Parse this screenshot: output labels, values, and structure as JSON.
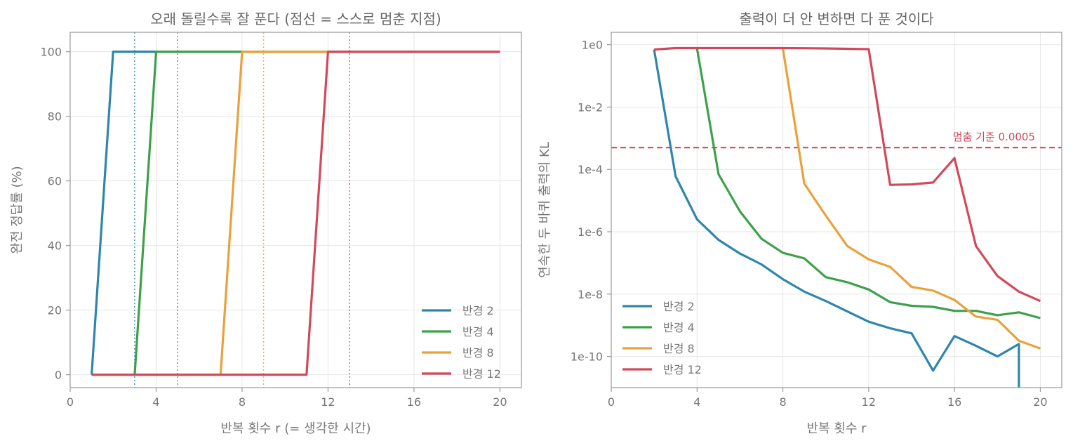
{
  "chart_data": [
    {
      "type": "line",
      "title": "오래 돌릴수록 잘 푼다 (점선 = 스스로 멈춘 지점)",
      "xlabel": "반복 횟수 r  (= 생각한 시간)",
      "ylabel": "완전 정답률 (%)",
      "xlim": [
        0,
        21
      ],
      "ylim": [
        -4,
        106
      ],
      "xticks": [
        0,
        4,
        8,
        12,
        16,
        20
      ],
      "yticks": [
        0,
        20,
        40,
        60,
        80,
        100
      ],
      "grid": true,
      "legend_position": "bottom-right",
      "series": [
        {
          "name": "반경 2",
          "color": "#2e86ab",
          "x": [
            1,
            2,
            3,
            4,
            5,
            6,
            7,
            8,
            9,
            10,
            11,
            12,
            13,
            14,
            15,
            16,
            17,
            18,
            19,
            20
          ],
          "y": [
            0,
            100,
            100,
            100,
            100,
            100,
            100,
            100,
            100,
            100,
            100,
            100,
            100,
            100,
            100,
            100,
            100,
            100,
            100,
            100
          ]
        },
        {
          "name": "반경 4",
          "color": "#3da14a",
          "x": [
            3,
            4,
            5,
            6,
            7,
            8,
            9,
            10,
            11,
            12,
            13,
            14,
            15,
            16,
            17,
            18,
            19,
            20
          ],
          "y": [
            0,
            100,
            100,
            100,
            100,
            100,
            100,
            100,
            100,
            100,
            100,
            100,
            100,
            100,
            100,
            100,
            100,
            100
          ]
        },
        {
          "name": "반경 8",
          "color": "#e9a23b",
          "x": [
            1,
            2,
            3,
            4,
            5,
            6,
            7,
            8,
            9,
            10,
            11,
            12,
            13,
            14,
            15,
            16,
            17,
            18,
            19,
            20
          ],
          "y": [
            0,
            0,
            0,
            0,
            0,
            0,
            0,
            100,
            100,
            100,
            100,
            100,
            100,
            100,
            100,
            100,
            100,
            100,
            100,
            100
          ]
        },
        {
          "name": "반경 12",
          "color": "#d1495b",
          "x": [
            1,
            2,
            3,
            4,
            5,
            6,
            7,
            8,
            9,
            10,
            11,
            12,
            13,
            14,
            15,
            16,
            17,
            18,
            19,
            20
          ],
          "y": [
            0,
            0,
            0,
            0,
            0,
            0,
            0,
            0,
            0,
            0,
            0,
            100,
            100,
            100,
            100,
            100,
            100,
            100,
            100,
            100
          ]
        }
      ],
      "stop_lines": [
        {
          "x": 3,
          "color": "#2e86ab"
        },
        {
          "x": 5,
          "color": "#3da14a"
        },
        {
          "x": 9,
          "color": "#e9a23b"
        },
        {
          "x": 13,
          "color": "#d1495b"
        }
      ]
    },
    {
      "type": "line",
      "title": "출력이 더 안 변하면 다 푼 것이다",
      "xlabel": "반복 횟수 r",
      "ylabel": "연속한 두 바퀴 출력의 KL",
      "yscale": "log",
      "xlim": [
        0,
        21
      ],
      "ylim": [
        1e-11,
        2.5
      ],
      "xticks": [
        0,
        4,
        8,
        12,
        16,
        20
      ],
      "yticks": [
        1,
        0.01,
        0.0001,
        1e-06,
        1e-08,
        1e-10
      ],
      "ytick_labels": [
        "1e0",
        "1e-2",
        "1e-4",
        "1e-6",
        "1e-8",
        "1e-10"
      ],
      "grid": true,
      "legend_position": "bottom-left",
      "threshold": {
        "value": 0.0005,
        "label": "멈춤 기준 0.0005",
        "color": "#d1495b"
      },
      "series": [
        {
          "name": "반경 2",
          "color": "#2e86ab",
          "x": [
            2,
            3,
            4,
            5,
            6,
            7,
            8,
            9,
            10,
            11,
            12,
            13,
            14,
            15,
            16,
            17,
            18,
            19,
            19
          ],
          "y": [
            0.7,
            6e-05,
            2.5e-06,
            5.5e-07,
            2e-07,
            9e-08,
            3e-08,
            1.2e-08,
            6e-09,
            2.8e-09,
            1.3e-09,
            8e-10,
            5.5e-10,
            3.5e-11,
            4.5e-10,
            2.2e-10,
            1e-10,
            2.5e-10,
            1e-11
          ]
        },
        {
          "name": "반경 4",
          "color": "#3da14a",
          "x": [
            4,
            5,
            6,
            7,
            8,
            9,
            10,
            11,
            12,
            13,
            14,
            15,
            16,
            17,
            18,
            19,
            20
          ],
          "y": [
            0.75,
            7e-05,
            4.5e-06,
            6e-07,
            2.1e-07,
            1.4e-07,
            3.5e-08,
            2.4e-08,
            1.4e-08,
            5.5e-09,
            4.2e-09,
            3.9e-09,
            2.9e-09,
            2.9e-09,
            2.1e-09,
            2.6e-09,
            1.7e-09
          ]
        },
        {
          "name": "반경 8",
          "color": "#e9a23b",
          "x": [
            8,
            9,
            10,
            11,
            12,
            13,
            14,
            15,
            16,
            17,
            18,
            19,
            20
          ],
          "y": [
            0.75,
            3.5e-05,
            3.3e-06,
            3.5e-07,
            1.3e-07,
            7.5e-08,
            1.7e-08,
            1.3e-08,
            6.5e-09,
            1.9e-09,
            1.5e-09,
            3.2e-10,
            1.8e-10
          ]
        },
        {
          "name": "반경 12",
          "color": "#d1495b",
          "x": [
            2,
            3,
            4,
            5,
            6,
            7,
            8,
            9,
            10,
            11,
            12,
            13,
            14,
            15,
            16,
            17,
            18,
            19,
            20
          ],
          "y": [
            0.7,
            0.78,
            0.78,
            0.78,
            0.78,
            0.78,
            0.78,
            0.77,
            0.76,
            0.74,
            0.72,
            3.2e-05,
            3.3e-05,
            3.8e-05,
            0.00023,
            3.5e-07,
            3.8e-08,
            1.2e-08,
            6e-09
          ]
        }
      ]
    }
  ]
}
